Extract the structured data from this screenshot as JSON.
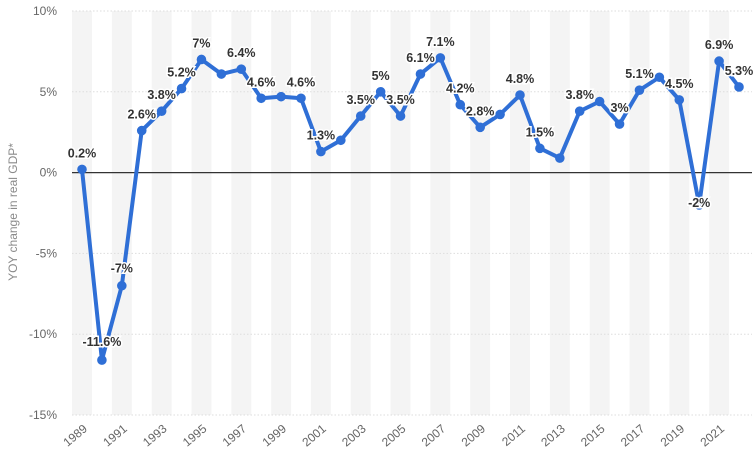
{
  "chart_data": {
    "type": "line",
    "title": "",
    "xlabel": "",
    "ylabel": "YOY change in real GDP*",
    "ylim": [
      -15,
      10
    ],
    "yticks": [
      10,
      5,
      0,
      -5,
      -10,
      -15
    ],
    "ytick_labels": [
      "10%",
      "5%",
      "0%",
      "-5%",
      "-10%",
      "-15%"
    ],
    "x": [
      1989,
      1990,
      1991,
      1992,
      1993,
      1994,
      1995,
      1996,
      1997,
      1998,
      1999,
      2000,
      2001,
      2002,
      2003,
      2004,
      2005,
      2006,
      2007,
      2008,
      2009,
      2010,
      2011,
      2012,
      2013,
      2014,
      2015,
      2016,
      2017,
      2018,
      2019,
      2020,
      2021,
      2022
    ],
    "xtick_labels": [
      "1989",
      "1991",
      "1993",
      "1995",
      "1997",
      "1999",
      "2001",
      "2003",
      "2005",
      "2007",
      "2009",
      "2011",
      "2013",
      "2015",
      "2017",
      "2019",
      "2021"
    ],
    "series": [
      {
        "name": "YOY change in real GDP",
        "color": "#2f6fd6",
        "values": [
          0.2,
          -11.6,
          -7,
          2.6,
          3.8,
          5.2,
          7,
          6.1,
          6.4,
          4.6,
          4.7,
          4.6,
          1.3,
          2,
          3.5,
          5,
          3.5,
          6.1,
          7.1,
          4.2,
          2.8,
          3.6,
          4.8,
          1.5,
          0.9,
          3.8,
          4.4,
          3,
          5.1,
          5.9,
          4.5,
          -2,
          6.9,
          5.3
        ]
      }
    ],
    "data_labels": [
      {
        "year": 1989,
        "text": "0.2%"
      },
      {
        "year": 1990,
        "text": "-11.6%"
      },
      {
        "year": 1991,
        "text": "-7%"
      },
      {
        "year": 1992,
        "text": "2.6%"
      },
      {
        "year": 1993,
        "text": "3.8%"
      },
      {
        "year": 1994,
        "text": "5.2%"
      },
      {
        "year": 1995,
        "text": "7%"
      },
      {
        "year": 1997,
        "text": "6.4%"
      },
      {
        "year": 1998,
        "text": "4.6%"
      },
      {
        "year": 2000,
        "text": "4.6%"
      },
      {
        "year": 2001,
        "text": "1.3%"
      },
      {
        "year": 2003,
        "text": "3.5%"
      },
      {
        "year": 2004,
        "text": "5%"
      },
      {
        "year": 2005,
        "text": "3.5%"
      },
      {
        "year": 2006,
        "text": "6.1%"
      },
      {
        "year": 2007,
        "text": "7.1%"
      },
      {
        "year": 2008,
        "text": "4.2%"
      },
      {
        "year": 2009,
        "text": "2.8%"
      },
      {
        "year": 2011,
        "text": "4.8%"
      },
      {
        "year": 2012,
        "text": "1.5%"
      },
      {
        "year": 2014,
        "text": "3.8%"
      },
      {
        "year": 2016,
        "text": "3%"
      },
      {
        "year": 2017,
        "text": "5.1%"
      },
      {
        "year": 2019,
        "text": "4.5%"
      },
      {
        "year": 2020,
        "text": "-2%"
      },
      {
        "year": 2021,
        "text": "6.9%"
      },
      {
        "year": 2022,
        "text": "5.3%"
      }
    ],
    "colors": {
      "line": "#2f6fd6",
      "band": "#f4f4f4",
      "grid": "#dddddd",
      "zero_line": "#333333"
    },
    "grid": true,
    "legend": "none"
  }
}
